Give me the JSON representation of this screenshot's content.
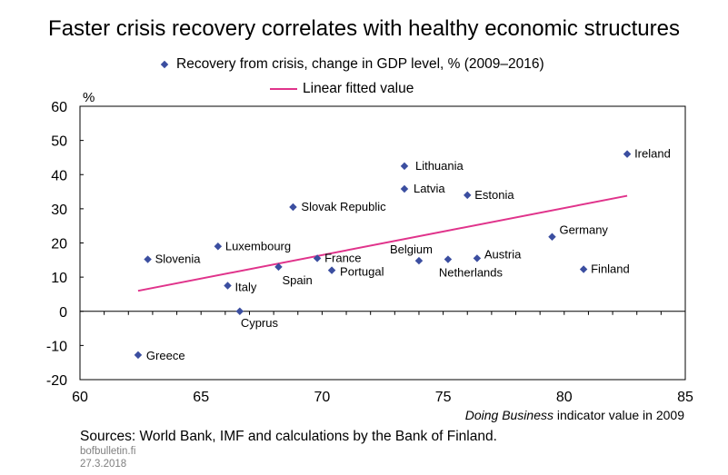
{
  "title": "Faster crisis recovery correlates with healthy economic structures",
  "legend": {
    "series1": "Recovery from crisis, change in GDP level, % (2009–2016)",
    "series2": "Linear fitted value"
  },
  "footer": {
    "sources": "Sources: World Bank, IMF and calculations by the Bank of Finland.",
    "site": "bofbulletin.fi",
    "date": "27.3.2018"
  },
  "xlabel": {
    "italic": "Doing Business",
    "rest": " indicator value in 2009"
  },
  "colors": {
    "marker": "#3B4EA0",
    "fit": "#E0338B"
  },
  "chart_data": {
    "type": "scatter",
    "title": "Faster crisis recovery correlates with healthy economic structures",
    "xlabel": "Doing Business indicator value in 2009",
    "ylabel": "%",
    "xlim": [
      60,
      85
    ],
    "ylim": [
      -20,
      60
    ],
    "xticks": [
      60,
      65,
      70,
      75,
      80,
      85
    ],
    "yticks": [
      -20,
      -10,
      0,
      10,
      20,
      30,
      40,
      50,
      60
    ],
    "grid": false,
    "legend_position": "top",
    "series": [
      {
        "name": "Recovery from crisis, change in GDP level, % (2009–2016)",
        "points": [
          {
            "label": "Ireland",
            "x": 82.6,
            "y": 46.0
          },
          {
            "label": "Lithuania",
            "x": 73.4,
            "y": 42.5
          },
          {
            "label": "Latvia",
            "x": 73.4,
            "y": 35.8
          },
          {
            "label": "Estonia",
            "x": 76.0,
            "y": 34.0
          },
          {
            "label": "Slovak Republic",
            "x": 68.8,
            "y": 30.5
          },
          {
            "label": "Germany",
            "x": 79.5,
            "y": 21.8
          },
          {
            "label": "Luxembourg",
            "x": 65.7,
            "y": 19.0
          },
          {
            "label": "Slovenia",
            "x": 62.8,
            "y": 15.2
          },
          {
            "label": "France",
            "x": 69.8,
            "y": 15.5
          },
          {
            "label": "Belgium",
            "x": 74.0,
            "y": 14.8
          },
          {
            "label": "Netherlands",
            "x": 75.2,
            "y": 15.2
          },
          {
            "label": "Austria",
            "x": 76.4,
            "y": 15.5
          },
          {
            "label": "Spain",
            "x": 68.2,
            "y": 13.0
          },
          {
            "label": "Portugal",
            "x": 70.4,
            "y": 12.0
          },
          {
            "label": "Finland",
            "x": 80.8,
            "y": 12.3
          },
          {
            "label": "Italy",
            "x": 66.1,
            "y": 7.5
          },
          {
            "label": "Cyprus",
            "x": 66.6,
            "y": 0.0
          },
          {
            "label": "Greece",
            "x": 62.4,
            "y": -12.8
          }
        ]
      },
      {
        "name": "Linear fitted value",
        "type": "line",
        "x": [
          62.4,
          82.6
        ],
        "y": [
          6.0,
          33.8
        ]
      }
    ]
  }
}
